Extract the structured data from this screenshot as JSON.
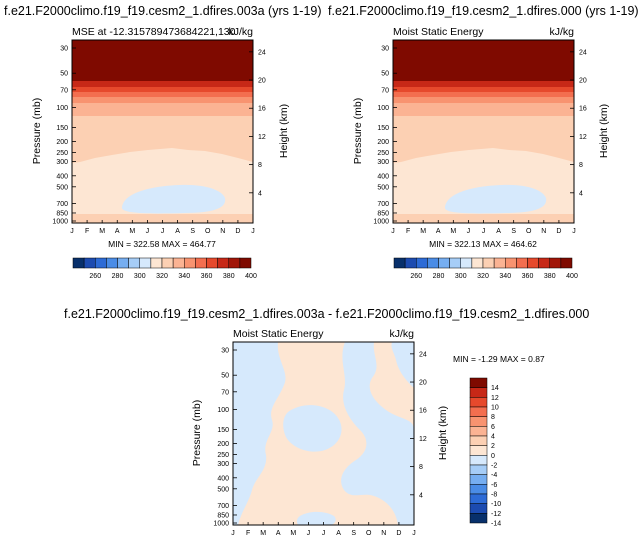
{
  "months": [
    "J",
    "F",
    "M",
    "A",
    "M",
    "J",
    "J",
    "A",
    "S",
    "O",
    "N",
    "D",
    "J"
  ],
  "pressure_ticks": [
    "30",
    "50",
    "70",
    "100",
    "150",
    "200",
    "250",
    "300",
    "400",
    "500",
    "700",
    "850",
    "1000"
  ],
  "height_ticks": [
    "4",
    "8",
    "12",
    "16",
    "20",
    "24"
  ],
  "colors": {
    "mse": [
      "#08306b",
      "#1c4bb0",
      "#2d6bd6",
      "#4a8ce6",
      "#76aef1",
      "#a6cdf7",
      "#d6e9fc",
      "#fde6d3",
      "#fcd0b3",
      "#fbb393",
      "#f89370",
      "#f36e4f",
      "#e6492c",
      "#c72817",
      "#a11508",
      "#7f0a00"
    ],
    "diff": [
      "#08306b",
      "#1c4bb0",
      "#2d6bd6",
      "#4a8ce6",
      "#76aef1",
      "#a6cdf7",
      "#d6e9fc",
      "#fde6d3",
      "#fcd0b3",
      "#fbb393",
      "#f89370",
      "#f36e4f",
      "#e6492c",
      "#c72817",
      "#7f0a00"
    ]
  },
  "chart_data": [
    {
      "type": "heatmap",
      "title": "f.e21.F2000climo.f19_f19.cesm2_1.dfires.003a (yrs 1-19)",
      "subtitle_left": "MSE at -12.315789473684221,130",
      "subtitle_right": "kJ/kg",
      "xlabel": "",
      "ylabel": "Pressure (mb)",
      "ylabel_right": "Height (km)",
      "stats": "MIN = 322.58 MAX = 464.77",
      "min": 322.58,
      "max": 464.77,
      "colorbar_labels": [
        "260",
        "280",
        "300",
        "320",
        "340",
        "360",
        "380",
        "400"
      ],
      "colorbar_levels": [
        250,
        260,
        270,
        280,
        290,
        300,
        310,
        320,
        330,
        340,
        350,
        360,
        370,
        380,
        390,
        400,
        410
      ]
    },
    {
      "type": "heatmap",
      "title": "f.e21.F2000climo.f19_f19.cesm2_1.dfires.000 (yrs 1-19)",
      "subtitle_left": "Moist Static Energy",
      "subtitle_right": "kJ/kg",
      "xlabel": "",
      "ylabel": "Pressure (mb)",
      "ylabel_right": "Height (km)",
      "stats": "MIN = 322.13 MAX = 464.62",
      "min": 322.13,
      "max": 464.62,
      "colorbar_labels": [
        "260",
        "280",
        "300",
        "320",
        "340",
        "360",
        "380",
        "400"
      ],
      "colorbar_levels": [
        250,
        260,
        270,
        280,
        290,
        300,
        310,
        320,
        330,
        340,
        350,
        360,
        370,
        380,
        390,
        400,
        410
      ]
    },
    {
      "type": "heatmap",
      "title": "f.e21.F2000climo.f19_f19.cesm2_1.dfires.003a - f.e21.F2000climo.f19_f19.cesm2_1.dfires.000",
      "subtitle_left": "Moist Static Energy",
      "subtitle_right": "kJ/kg",
      "xlabel": "",
      "ylabel": "Pressure (mb)",
      "ylabel_right": "Height (km)",
      "stats": "MIN = -1.29 MAX = 0.87",
      "min": -1.29,
      "max": 0.87,
      "colorbar_labels": [
        "14",
        "12",
        "10",
        "8",
        "6",
        "4",
        "2",
        "0",
        "-2",
        "-4",
        "-6",
        "-8",
        "-10",
        "-12",
        "-14"
      ],
      "colorbar_levels": [
        -14,
        -12,
        -10,
        -8,
        -6,
        -4,
        -2,
        0,
        2,
        4,
        6,
        8,
        10,
        12,
        14
      ]
    }
  ]
}
